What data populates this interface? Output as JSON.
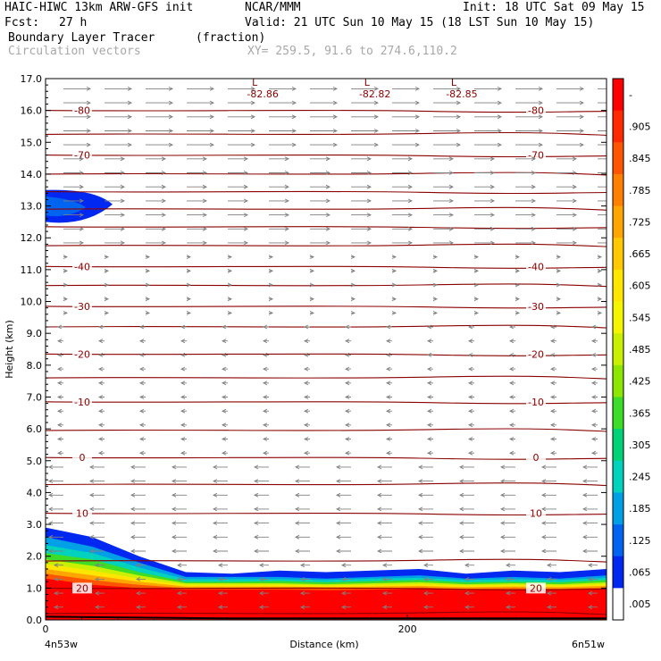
{
  "header": {
    "model": "HAIC-HIWC 13km ARW-GFS init",
    "org": "NCAR/MMM",
    "init": "Init: 18 UTC Sat 09 May 15",
    "fcst_label": "Fcst:",
    "fcst_value": "27 h",
    "valid": "Valid: 21 UTC Sun 10 May 15 (18 LST Sun 10 May 15)",
    "field": "Boundary Layer Tracer",
    "units": "(fraction)",
    "vectors": "Circulation vectors",
    "xy": "XY= 259.5, 91.6 to 274.6,110.2"
  },
  "chart_data": {
    "type": "heatmap",
    "title": "Boundary Layer Tracer",
    "ylabel": "Height (km)",
    "xlabel": "Distance (km)",
    "ylim": [
      0,
      17
    ],
    "y_ticks": [
      "0.0",
      "1.0",
      "2.0",
      "3.0",
      "4.0",
      "5.0",
      "6.0",
      "7.0",
      "8.0",
      "9.0",
      "10.0",
      "11.0",
      "12.0",
      "13.0",
      "14.0",
      "15.0",
      "16.0",
      "17.0"
    ],
    "xlim": [
      0,
      310
    ],
    "x_ticks": [
      {
        "value": 0,
        "label": "0"
      },
      {
        "value": 200,
        "label": "200"
      }
    ],
    "x_endpoints": [
      "4n53w",
      "6n51w"
    ],
    "colorbar_labels": [
      "-",
      ".905",
      ".845",
      ".785",
      ".725",
      ".665",
      ".605",
      ".545",
      ".485",
      ".425",
      ".365",
      ".305",
      ".245",
      ".185",
      ".125",
      ".065",
      ".005"
    ],
    "colorbar_colors": [
      "#ff0000",
      "#ff2a00",
      "#ff5500",
      "#ff7f00",
      "#ffa500",
      "#ffc800",
      "#ffe600",
      "#f5f500",
      "#c8f000",
      "#8ce600",
      "#3cdc28",
      "#00d278",
      "#00d2be",
      "#00a0e6",
      "#0064f0",
      "#0028f0",
      "#ffffff"
    ],
    "temperature_contours": [
      {
        "height": 0.2,
        "label": ""
      },
      {
        "height": 1.0,
        "label": "20"
      },
      {
        "height": 1.85,
        "label": ""
      },
      {
        "height": 3.35,
        "label": "10"
      },
      {
        "height": 4.25,
        "label": ""
      },
      {
        "height": 5.1,
        "label": "0"
      },
      {
        "height": 5.95,
        "label": ""
      },
      {
        "height": 6.85,
        "label": "-10"
      },
      {
        "height": 7.6,
        "label": ""
      },
      {
        "height": 8.35,
        "label": "-20"
      },
      {
        "height": 9.2,
        "label": ""
      },
      {
        "height": 9.85,
        "label": "-30"
      },
      {
        "height": 10.5,
        "label": ""
      },
      {
        "height": 11.1,
        "label": "-40"
      },
      {
        "height": 11.75,
        "label": ""
      },
      {
        "height": 12.35,
        "label": ""
      },
      {
        "height": 12.9,
        "label": ""
      },
      {
        "height": 13.45,
        "label": ""
      },
      {
        "height": 14.0,
        "label": ""
      },
      {
        "height": 14.6,
        "label": "-70"
      },
      {
        "height": 15.25,
        "label": ""
      },
      {
        "height": 16.0,
        "label": "-80"
      }
    ],
    "low_labels": [
      {
        "x": 120,
        "label": "-82.86"
      },
      {
        "x": 182,
        "label": "-82.82"
      },
      {
        "x": 230,
        "label": "-82.85"
      }
    ]
  }
}
